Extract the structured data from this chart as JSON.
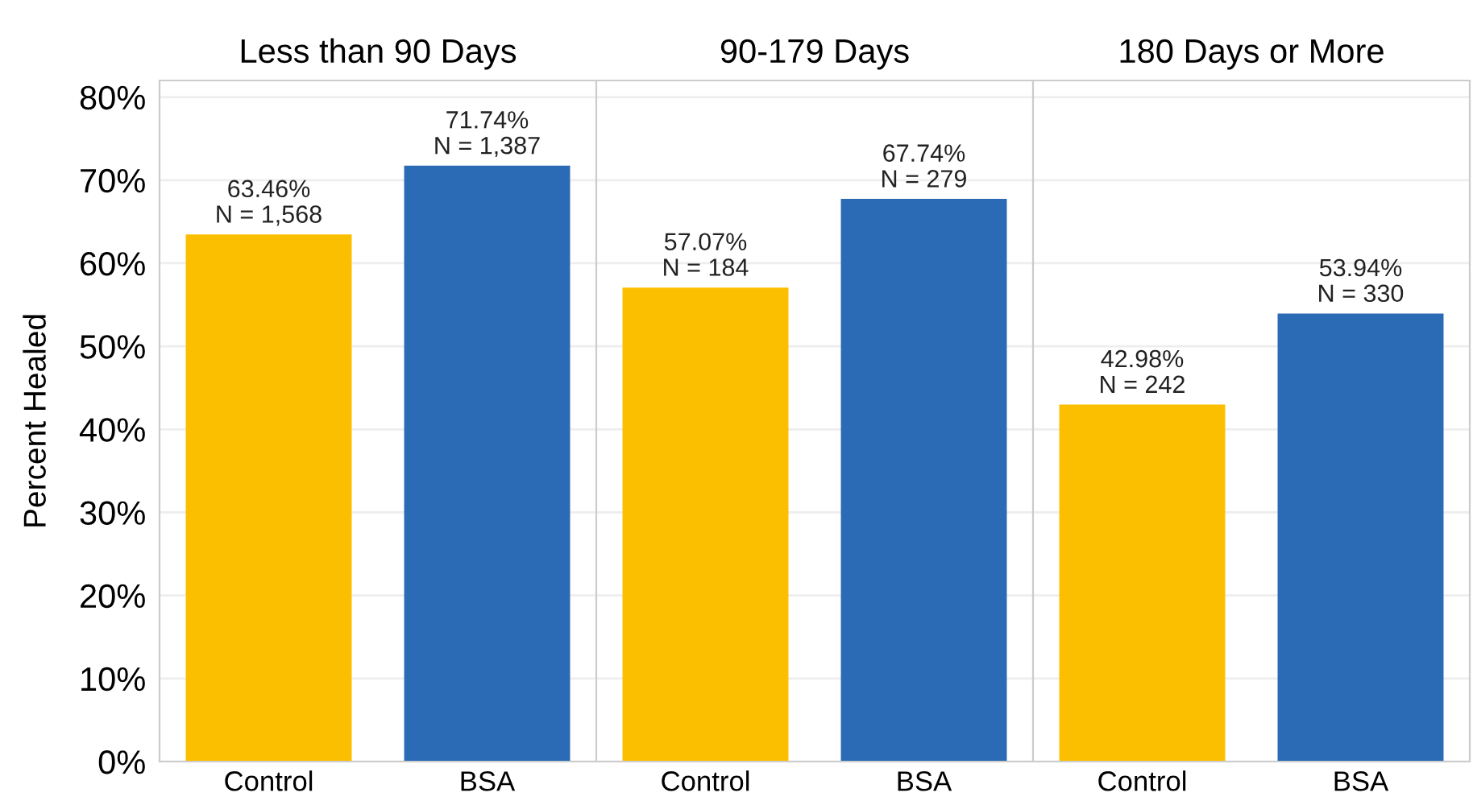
{
  "chart_data": [
    {
      "type": "bar",
      "title": "Less than 90 Days",
      "ylabel": "Percent Healed",
      "categories": [
        "Control",
        "BSA"
      ],
      "values": [
        63.46,
        71.74
      ],
      "colors": [
        "#fcbf00",
        "#2b6bb5"
      ],
      "value_labels": [
        "63.46%\nN = 1,568",
        "71.74%\nN = 1,387"
      ],
      "ylim": [
        0,
        82
      ],
      "yticks": [
        {
          "value": 0,
          "label": "0%"
        },
        {
          "value": 10,
          "label": "10%"
        },
        {
          "value": 20,
          "label": "20%"
        },
        {
          "value": 30,
          "label": "30%"
        },
        {
          "value": 40,
          "label": "40%"
        },
        {
          "value": 50,
          "label": "50%"
        },
        {
          "value": 60,
          "label": "60%"
        },
        {
          "value": 70,
          "label": "70%"
        },
        {
          "value": 80,
          "label": "80%"
        }
      ],
      "grid": "y"
    },
    {
      "type": "bar",
      "title": "90-179 Days",
      "categories": [
        "Control",
        "BSA"
      ],
      "values": [
        57.07,
        67.74
      ],
      "colors": [
        "#fcbf00",
        "#2b6bb5"
      ],
      "value_labels": [
        "57.07%\nN = 184",
        "67.74%\nN = 279"
      ],
      "ylim": [
        0,
        82
      ],
      "yticks": [
        {
          "value": 0,
          "label": null
        },
        {
          "value": 10,
          "label": null
        },
        {
          "value": 20,
          "label": null
        },
        {
          "value": 30,
          "label": null
        },
        {
          "value": 40,
          "label": null
        },
        {
          "value": 50,
          "label": null
        },
        {
          "value": 60,
          "label": null
        },
        {
          "value": 70,
          "label": null
        },
        {
          "value": 80,
          "label": null
        }
      ],
      "grid": "y",
      "tick_labels": "x"
    },
    {
      "type": "bar",
      "title": "180 Days or More",
      "categories": [
        "Control",
        "BSA"
      ],
      "values": [
        42.98,
        53.94
      ],
      "colors": [
        "#fcbf00",
        "#2b6bb5"
      ],
      "value_labels": [
        "42.98%\nN = 242",
        "53.94%\nN = 330"
      ],
      "ylim": [
        0,
        82
      ],
      "yticks": [
        {
          "value": 0,
          "label": null
        },
        {
          "value": 10,
          "label": null
        },
        {
          "value": 20,
          "label": null
        },
        {
          "value": 30,
          "label": null
        },
        {
          "value": 40,
          "label": null
        },
        {
          "value": 50,
          "label": null
        },
        {
          "value": 60,
          "label": null
        },
        {
          "value": 70,
          "label": null
        },
        {
          "value": 80,
          "label": null
        }
      ],
      "grid": "y",
      "tick_labels": "x"
    }
  ]
}
